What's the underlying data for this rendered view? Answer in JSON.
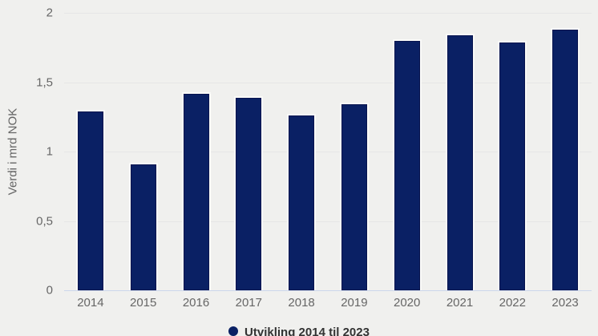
{
  "chart_data": {
    "type": "bar",
    "title": "",
    "categories": [
      "2014",
      "2015",
      "2016",
      "2017",
      "2018",
      "2019",
      "2020",
      "2021",
      "2022",
      "2023"
    ],
    "values": [
      1.3,
      0.92,
      1.43,
      1.4,
      1.27,
      1.35,
      1.81,
      1.85,
      1.8,
      1.89
    ],
    "series_name": "Utvikling 2014 til 2023",
    "xlabel": "",
    "ylabel": "Verdi i mrd NOK",
    "ylim": [
      0,
      2
    ],
    "yticks": [
      0,
      0.5,
      1,
      1.5,
      2
    ],
    "ytick_labels": [
      "0",
      "0,5",
      "1",
      "1,5",
      "2"
    ],
    "grid": true,
    "legend_position": "bottom"
  },
  "colors": {
    "bar": "#0a2064",
    "bar_border": "#fafaf8",
    "background": "#f0f0ee",
    "gridline": "#e6e6e6",
    "axis_line": "#ccd6eb",
    "tick_text": "#666666",
    "legend_text": "#333333"
  }
}
